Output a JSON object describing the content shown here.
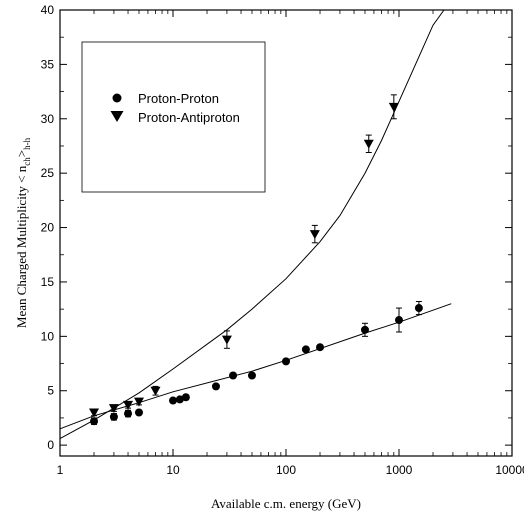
{
  "chart_data": {
    "type": "scatter",
    "xlabel": "Available c.m. energy (GeV)",
    "ylabel": "Mean Charged Multiplicity < n",
    "ylabel_sub": "ch",
    "ylabel_close": ">",
    "ylabel_sub2": "h-h",
    "x_scale": "log",
    "xlim": [
      1,
      10000
    ],
    "ylim": [
      -1,
      40
    ],
    "x_ticks": [
      1,
      10,
      100,
      1000,
      10000
    ],
    "x_tick_labels": [
      "1",
      "10",
      "100",
      "1000",
      "10000"
    ],
    "y_ticks": [
      0,
      5,
      10,
      15,
      20,
      25,
      30,
      35,
      40
    ],
    "y_tick_labels": [
      "0",
      "5",
      "10",
      "15",
      "20",
      "25",
      "30",
      "35",
      "40"
    ],
    "legend": {
      "position": "top-left"
    },
    "series": [
      {
        "name": "Proton-Proton",
        "marker": "circle",
        "points": [
          {
            "x": 2,
            "y": 2.2,
            "err": 0.3
          },
          {
            "x": 3,
            "y": 2.6,
            "err": 0.3
          },
          {
            "x": 4,
            "y": 2.9,
            "err": 0.3
          },
          {
            "x": 5,
            "y": 3.0,
            "err": 0.2
          },
          {
            "x": 10,
            "y": 4.1,
            "err": 0.2
          },
          {
            "x": 11.5,
            "y": 4.2,
            "err": 0.2
          },
          {
            "x": 13,
            "y": 4.4,
            "err": 0.2
          },
          {
            "x": 24,
            "y": 5.4,
            "err": 0.2
          },
          {
            "x": 34,
            "y": 6.4,
            "err": 0.2
          },
          {
            "x": 50,
            "y": 6.4,
            "err": 0.2
          },
          {
            "x": 100,
            "y": 7.7,
            "err": 0.2
          },
          {
            "x": 150,
            "y": 8.8,
            "err": 0.2
          },
          {
            "x": 200,
            "y": 9.0,
            "err": 0.2
          },
          {
            "x": 500,
            "y": 10.6,
            "err": 0.6
          },
          {
            "x": 1000,
            "y": 11.5,
            "err": 1.1
          },
          {
            "x": 1500,
            "y": 12.6,
            "err": 0.6
          }
        ]
      },
      {
        "name": "Proton-Antiproton",
        "marker": "triangle-down",
        "points": [
          {
            "x": 2,
            "y": 3.0,
            "err": 0.3
          },
          {
            "x": 3,
            "y": 3.4,
            "err": 0.3
          },
          {
            "x": 4,
            "y": 3.7,
            "err": 0.3
          },
          {
            "x": 5,
            "y": 4.0,
            "err": 0.3
          },
          {
            "x": 7,
            "y": 5.0,
            "err": 0.4
          },
          {
            "x": 30,
            "y": 9.7,
            "err": 0.8
          },
          {
            "x": 180,
            "y": 19.4,
            "err": 0.8
          },
          {
            "x": 540,
            "y": 27.7,
            "err": 0.8
          },
          {
            "x": 900,
            "y": 31.1,
            "err": 1.1
          }
        ]
      }
    ],
    "fits": [
      {
        "name": "fit-proton-proton",
        "x": [
          1,
          1.5,
          2,
          5,
          10,
          50,
          100,
          500,
          1000,
          2000,
          2900
        ],
        "y": [
          1.5,
          2.2,
          2.7,
          3.9,
          4.9,
          6.8,
          7.8,
          10.3,
          11.3,
          12.4,
          13.0
        ]
      },
      {
        "name": "fit-proton-antiproton",
        "x": [
          1,
          2,
          5,
          10,
          30,
          50,
          100,
          200,
          300,
          500,
          700,
          1000,
          1500,
          2000,
          2500
        ],
        "y": [
          0.6,
          2.3,
          4.8,
          7.0,
          10.6,
          12.5,
          15.3,
          18.7,
          21.1,
          25.0,
          28.0,
          31.6,
          35.7,
          38.6,
          40.0
        ]
      }
    ]
  }
}
